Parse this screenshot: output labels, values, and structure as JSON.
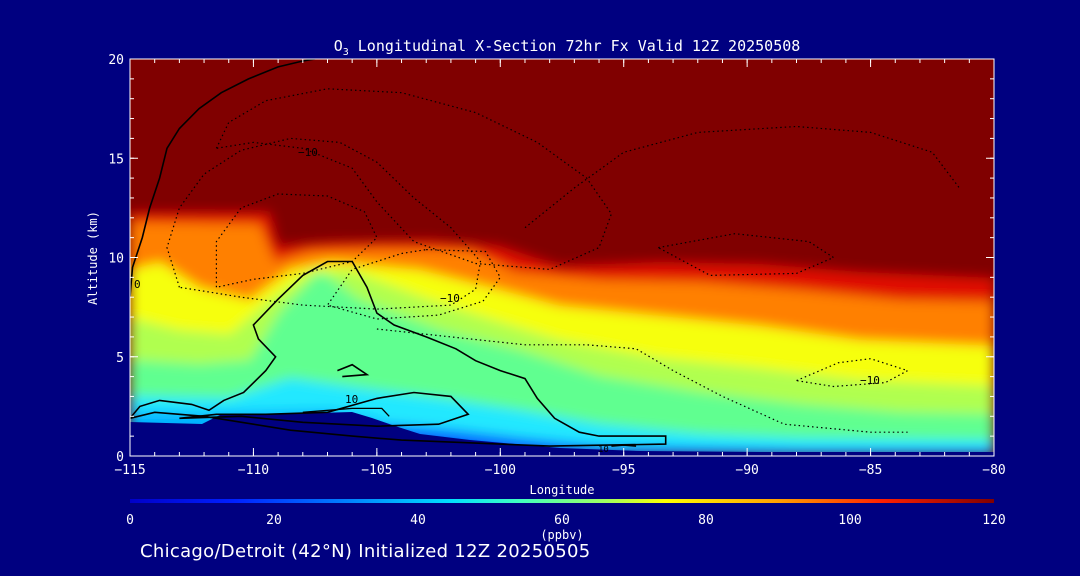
{
  "chart_data": {
    "type": "heatmap",
    "title_parts": {
      "species": "O",
      "subscript": "3",
      "rest": " Longitudinal X-Section 72hr  Fx Valid 12Z 20250508"
    },
    "xlabel": "Longitude",
    "ylabel": "Altitude (km)",
    "xlim": [
      -115,
      -80
    ],
    "ylim": [
      0,
      20
    ],
    "x_ticks": [
      -115,
      -110,
      -105,
      -100,
      -95,
      -90,
      -85,
      -80
    ],
    "x_tick_labels": [
      "−115",
      "−110",
      "−105",
      "−100",
      "−95",
      "−90",
      "−85",
      "−80"
    ],
    "y_ticks": [
      0,
      5,
      10,
      15,
      20
    ],
    "y_tick_labels": [
      "0",
      "5",
      "10",
      "15",
      "20"
    ],
    "colorbar": {
      "min": 0,
      "max": 120,
      "unit_label": "(ppbv)",
      "ticks": [
        0,
        20,
        40,
        60,
        80,
        100,
        120
      ],
      "tick_labels": [
        "0",
        "20",
        "40",
        "60",
        "80",
        "100",
        "120"
      ]
    },
    "contour_labels": [
      "0",
      "10",
      "−10",
      "−10",
      "−10",
      "10"
    ],
    "contour_lines": {
      "zero": [
        [
          [
            -115,
            8
          ],
          [
            -114.9,
            9.5
          ],
          [
            -114.5,
            11
          ],
          [
            -114.2,
            12.5
          ],
          [
            -113.8,
            14
          ],
          [
            -113.5,
            15.5
          ],
          [
            -113,
            16.5
          ],
          [
            -112.2,
            17.5
          ],
          [
            -111.3,
            18.3
          ],
          [
            -110.2,
            19
          ],
          [
            -109,
            19.6
          ],
          [
            -108,
            19.9
          ],
          [
            -107.5,
            20
          ]
        ],
        [
          [
            -115,
            1.9
          ],
          [
            -114.6,
            2.5
          ],
          [
            -113.8,
            2.8
          ],
          [
            -112.5,
            2.6
          ],
          [
            -111.8,
            2.3
          ],
          [
            -111.2,
            2.8
          ],
          [
            -110.4,
            3.2
          ],
          [
            -109.5,
            4.3
          ],
          [
            -109.1,
            5
          ],
          [
            -109.8,
            5.9
          ],
          [
            -110,
            6.6
          ],
          [
            -109,
            7.9
          ],
          [
            -108,
            9.1
          ],
          [
            -107,
            9.8
          ],
          [
            -106,
            9.8
          ],
          [
            -105.4,
            8.5
          ],
          [
            -105,
            7.2
          ],
          [
            -104.3,
            6.6
          ],
          [
            -103,
            6
          ],
          [
            -101.8,
            5.4
          ],
          [
            -101,
            4.8
          ],
          [
            -100,
            4.3
          ],
          [
            -99,
            3.9
          ],
          [
            -98.5,
            2.9
          ],
          [
            -97.8,
            1.9
          ],
          [
            -96.8,
            1.2
          ],
          [
            -96,
            1
          ],
          [
            -93.3,
            1
          ],
          [
            -93.3,
            0.6
          ],
          [
            -98,
            0.5
          ],
          [
            -102,
            0.7
          ],
          [
            -104,
            0.8
          ],
          [
            -106,
            1
          ],
          [
            -108.5,
            1.3
          ],
          [
            -110,
            1.6
          ],
          [
            -112,
            2
          ],
          [
            -114,
            2.2
          ],
          [
            -115,
            1.9
          ]
        ],
        [
          [
            -113,
            1.9
          ],
          [
            -111.5,
            2.1
          ],
          [
            -109.5,
            2.1
          ],
          [
            -107,
            2.2
          ],
          [
            -105,
            2.9
          ],
          [
            -103.5,
            3.2
          ],
          [
            -102,
            3
          ],
          [
            -101.3,
            2.1
          ],
          [
            -102.5,
            1.6
          ],
          [
            -105,
            1.5
          ],
          [
            -108,
            1.7
          ],
          [
            -110.5,
            2
          ],
          [
            -113,
            1.9
          ]
        ],
        [
          [
            -106.6,
            4.3
          ],
          [
            -106,
            4.6
          ],
          [
            -105.4,
            4.1
          ],
          [
            -106.4,
            4
          ]
        ],
        [
          [
            -95.5,
            0.5
          ],
          [
            -95,
            0.55
          ],
          [
            -94.5,
            0.5
          ]
        ]
      ],
      "ten": [
        [
          [
            -108,
            2.2
          ],
          [
            -106,
            2.4
          ],
          [
            -104.8,
            2.4
          ],
          [
            -104.5,
            2
          ]
        ]
      ],
      "neg_ten": [
        [
          [
            -113,
            8.5
          ],
          [
            -113.5,
            10.5
          ],
          [
            -113,
            12.5
          ],
          [
            -112,
            14.2
          ],
          [
            -110.5,
            15.4
          ],
          [
            -108.5,
            16
          ],
          [
            -106.5,
            15.8
          ],
          [
            -105,
            14.8
          ],
          [
            -103.5,
            13
          ],
          [
            -102,
            11.5
          ],
          [
            -100.8,
            9.8
          ],
          [
            -101,
            8.4
          ],
          [
            -102,
            7.6
          ],
          [
            -105,
            7.4
          ],
          [
            -108,
            7.6
          ],
          [
            -110.5,
            8
          ],
          [
            -112,
            8.3
          ],
          [
            -113,
            8.5
          ]
        ],
        [
          [
            -111.5,
            8.5
          ],
          [
            -111.5,
            10.8
          ],
          [
            -110.5,
            12.5
          ],
          [
            -109,
            13.2
          ],
          [
            -107,
            13.1
          ],
          [
            -105.5,
            12.3
          ],
          [
            -105,
            11
          ],
          [
            -106,
            9.8
          ],
          [
            -108,
            9.2
          ],
          [
            -110,
            8.9
          ],
          [
            -111.5,
            8.5
          ]
        ],
        [
          [
            -111.5,
            15.5
          ],
          [
            -111,
            16.8
          ],
          [
            -109.5,
            17.9
          ],
          [
            -107,
            18.5
          ],
          [
            -104,
            18.3
          ],
          [
            -101,
            17.3
          ],
          [
            -98.5,
            15.8
          ],
          [
            -96.5,
            14
          ],
          [
            -95.5,
            12.2
          ],
          [
            -96,
            10.5
          ],
          [
            -98,
            9.4
          ],
          [
            -101,
            9.7
          ],
          [
            -103.5,
            10.8
          ],
          [
            -105,
            12.8
          ],
          [
            -106,
            14.5
          ],
          [
            -108,
            15.5
          ],
          [
            -110,
            15.8
          ],
          [
            -111.5,
            15.5
          ]
        ],
        [
          [
            -103,
            10.4
          ],
          [
            -100.6,
            10.3
          ],
          [
            -100,
            9
          ],
          [
            -100.7,
            7.8
          ],
          [
            -102.5,
            7.1
          ],
          [
            -105,
            6.9
          ],
          [
            -107,
            7.6
          ],
          [
            -106,
            9.4
          ],
          [
            -104,
            10.2
          ],
          [
            -103,
            10.4
          ]
        ],
        [
          [
            -93.6,
            10.5
          ],
          [
            -90.5,
            11.2
          ],
          [
            -87.5,
            10.8
          ],
          [
            -86.5,
            10
          ],
          [
            -88,
            9.2
          ],
          [
            -91.5,
            9.1
          ],
          [
            -93.6,
            10.5
          ]
        ],
        [
          [
            -105,
            6.4
          ],
          [
            -102,
            6
          ],
          [
            -99,
            5.6
          ],
          [
            -96.5,
            5.6
          ],
          [
            -94.5,
            5.4
          ],
          [
            -93,
            4.3
          ],
          [
            -91,
            3
          ],
          [
            -88.5,
            1.6
          ],
          [
            -85,
            1.2
          ],
          [
            -83.5,
            1.2
          ]
        ],
        [
          [
            -99,
            11.5
          ],
          [
            -97,
            13.5
          ],
          [
            -95,
            15.3
          ],
          [
            -92,
            16.3
          ],
          [
            -88,
            16.6
          ],
          [
            -85,
            16.3
          ],
          [
            -82.5,
            15.3
          ],
          [
            -81.4,
            13.5
          ]
        ],
        [
          [
            -88,
            3.8
          ],
          [
            -86.3,
            4.7
          ],
          [
            -85,
            4.9
          ],
          [
            -83.5,
            4.3
          ],
          [
            -84.4,
            3.7
          ],
          [
            -86.5,
            3.5
          ],
          [
            -88,
            3.8
          ]
        ]
      ]
    },
    "ozone_profile_note": ""
  },
  "footer": {
    "text": "Chicago/Detroit (42°N) Initialized 12Z 20250505"
  }
}
